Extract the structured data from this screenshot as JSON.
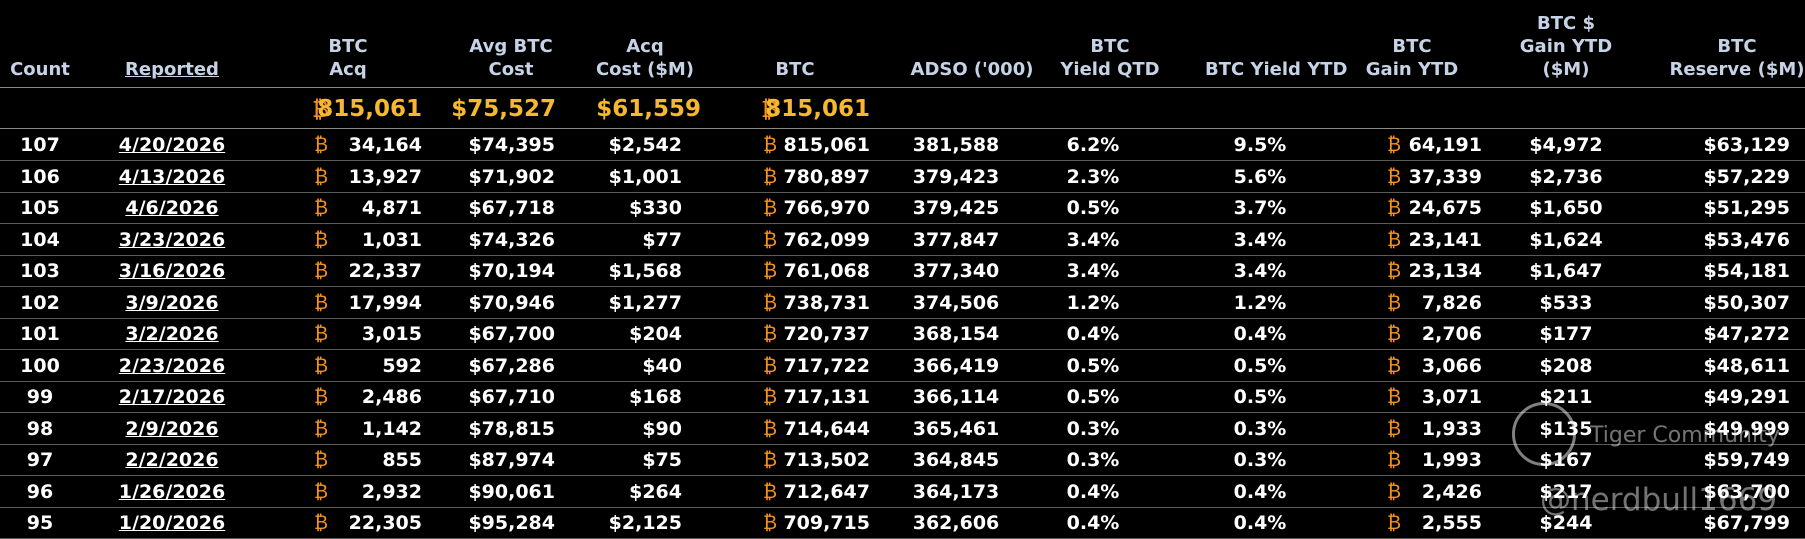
{
  "headers": {
    "count": [
      "Count"
    ],
    "reported": [
      "Reported"
    ],
    "btc_acq": [
      "BTC",
      "Acq"
    ],
    "avg_cost": [
      "Avg BTC",
      "Cost"
    ],
    "acq_cost": [
      "Acq",
      "Cost ($M)"
    ],
    "btc": [
      "BTC"
    ],
    "adso": [
      "ADSO ('000)"
    ],
    "yield_qtd": [
      "BTC",
      "Yield QTD"
    ],
    "yield_ytd": [
      "BTC Yield YTD"
    ],
    "gain_ytd": [
      "BTC",
      "Gain YTD"
    ],
    "usd_gain_ytd": [
      "BTC $",
      "Gain YTD",
      "($M)"
    ],
    "reserve": [
      "BTC",
      "Reserve ($M)"
    ]
  },
  "btc_symbol": "₿",
  "totals": {
    "btc_acq": "815,061",
    "avg_cost": "$75,527",
    "acq_cost": "$61,559",
    "btc": "815,061"
  },
  "rows": [
    {
      "count": "107",
      "reported": "4/20/2026",
      "btc_acq": "34,164",
      "avg_cost": "$74,395",
      "acq_cost": "$2,542",
      "btc": "815,061",
      "adso": "381,588",
      "yield_qtd": "6.2%",
      "yield_ytd": "9.5%",
      "gain_ytd": "64,191",
      "usd_gain_ytd": "$4,972",
      "reserve": "$63,129"
    },
    {
      "count": "106",
      "reported": "4/13/2026",
      "btc_acq": "13,927",
      "avg_cost": "$71,902",
      "acq_cost": "$1,001",
      "btc": "780,897",
      "adso": "379,423",
      "yield_qtd": "2.3%",
      "yield_ytd": "5.6%",
      "gain_ytd": "37,339",
      "usd_gain_ytd": "$2,736",
      "reserve": "$57,229"
    },
    {
      "count": "105",
      "reported": "4/6/2026",
      "btc_acq": "4,871",
      "avg_cost": "$67,718",
      "acq_cost": "$330",
      "btc": "766,970",
      "adso": "379,425",
      "yield_qtd": "0.5%",
      "yield_ytd": "3.7%",
      "gain_ytd": "24,675",
      "usd_gain_ytd": "$1,650",
      "reserve": "$51,295"
    },
    {
      "count": "104",
      "reported": "3/23/2026",
      "btc_acq": "1,031",
      "avg_cost": "$74,326",
      "acq_cost": "$77",
      "btc": "762,099",
      "adso": "377,847",
      "yield_qtd": "3.4%",
      "yield_ytd": "3.4%",
      "gain_ytd": "23,141",
      "usd_gain_ytd": "$1,624",
      "reserve": "$53,476"
    },
    {
      "count": "103",
      "reported": "3/16/2026",
      "btc_acq": "22,337",
      "avg_cost": "$70,194",
      "acq_cost": "$1,568",
      "btc": "761,068",
      "adso": "377,340",
      "yield_qtd": "3.4%",
      "yield_ytd": "3.4%",
      "gain_ytd": "23,134",
      "usd_gain_ytd": "$1,647",
      "reserve": "$54,181"
    },
    {
      "count": "102",
      "reported": "3/9/2026",
      "btc_acq": "17,994",
      "avg_cost": "$70,946",
      "acq_cost": "$1,277",
      "btc": "738,731",
      "adso": "374,506",
      "yield_qtd": "1.2%",
      "yield_ytd": "1.2%",
      "gain_ytd": "7,826",
      "usd_gain_ytd": "$533",
      "reserve": "$50,307"
    },
    {
      "count": "101",
      "reported": "3/2/2026",
      "btc_acq": "3,015",
      "avg_cost": "$67,700",
      "acq_cost": "$204",
      "btc": "720,737",
      "adso": "368,154",
      "yield_qtd": "0.4%",
      "yield_ytd": "0.4%",
      "gain_ytd": "2,706",
      "usd_gain_ytd": "$177",
      "reserve": "$47,272"
    },
    {
      "count": "100",
      "reported": "2/23/2026",
      "btc_acq": "592",
      "avg_cost": "$67,286",
      "acq_cost": "$40",
      "btc": "717,722",
      "adso": "366,419",
      "yield_qtd": "0.5%",
      "yield_ytd": "0.5%",
      "gain_ytd": "3,066",
      "usd_gain_ytd": "$208",
      "reserve": "$48,611"
    },
    {
      "count": "99",
      "reported": "2/17/2026",
      "btc_acq": "2,486",
      "avg_cost": "$67,710",
      "acq_cost": "$168",
      "btc": "717,131",
      "adso": "366,114",
      "yield_qtd": "0.5%",
      "yield_ytd": "0.5%",
      "gain_ytd": "3,071",
      "usd_gain_ytd": "$211",
      "reserve": "$49,291"
    },
    {
      "count": "98",
      "reported": "2/9/2026",
      "btc_acq": "1,142",
      "avg_cost": "$78,815",
      "acq_cost": "$90",
      "btc": "714,644",
      "adso": "365,461",
      "yield_qtd": "0.3%",
      "yield_ytd": "0.3%",
      "gain_ytd": "1,933",
      "usd_gain_ytd": "$135",
      "reserve": "$49,999"
    },
    {
      "count": "97",
      "reported": "2/2/2026",
      "btc_acq": "855",
      "avg_cost": "$87,974",
      "acq_cost": "$75",
      "btc": "713,502",
      "adso": "364,845",
      "yield_qtd": "0.3%",
      "yield_ytd": "0.3%",
      "gain_ytd": "1,993",
      "usd_gain_ytd": "$167",
      "reserve": "$59,749"
    },
    {
      "count": "96",
      "reported": "1/26/2026",
      "btc_acq": "2,932",
      "avg_cost": "$90,061",
      "acq_cost": "$264",
      "btc": "712,647",
      "adso": "364,173",
      "yield_qtd": "0.4%",
      "yield_ytd": "0.4%",
      "gain_ytd": "2,426",
      "usd_gain_ytd": "$217",
      "reserve": "$63,700"
    },
    {
      "count": "95",
      "reported": "1/20/2026",
      "btc_acq": "22,305",
      "avg_cost": "$95,284",
      "acq_cost": "$2,125",
      "btc": "709,715",
      "adso": "362,606",
      "yield_qtd": "0.4%",
      "yield_ytd": "0.4%",
      "gain_ytd": "2,555",
      "usd_gain_ytd": "$244",
      "reserve": "$67,799"
    }
  ],
  "watermark": {
    "brand": "Tiger Community",
    "handle": "@nerdbull1669"
  },
  "colors": {
    "background": "#000000",
    "header_text": "#c6d3e6",
    "total_text": "#f5b82e",
    "btc_symbol": "#f7931a"
  },
  "icons": {
    "btc": "bitcoin-symbol-icon",
    "watermark_logo": "tiger-logo-icon"
  }
}
